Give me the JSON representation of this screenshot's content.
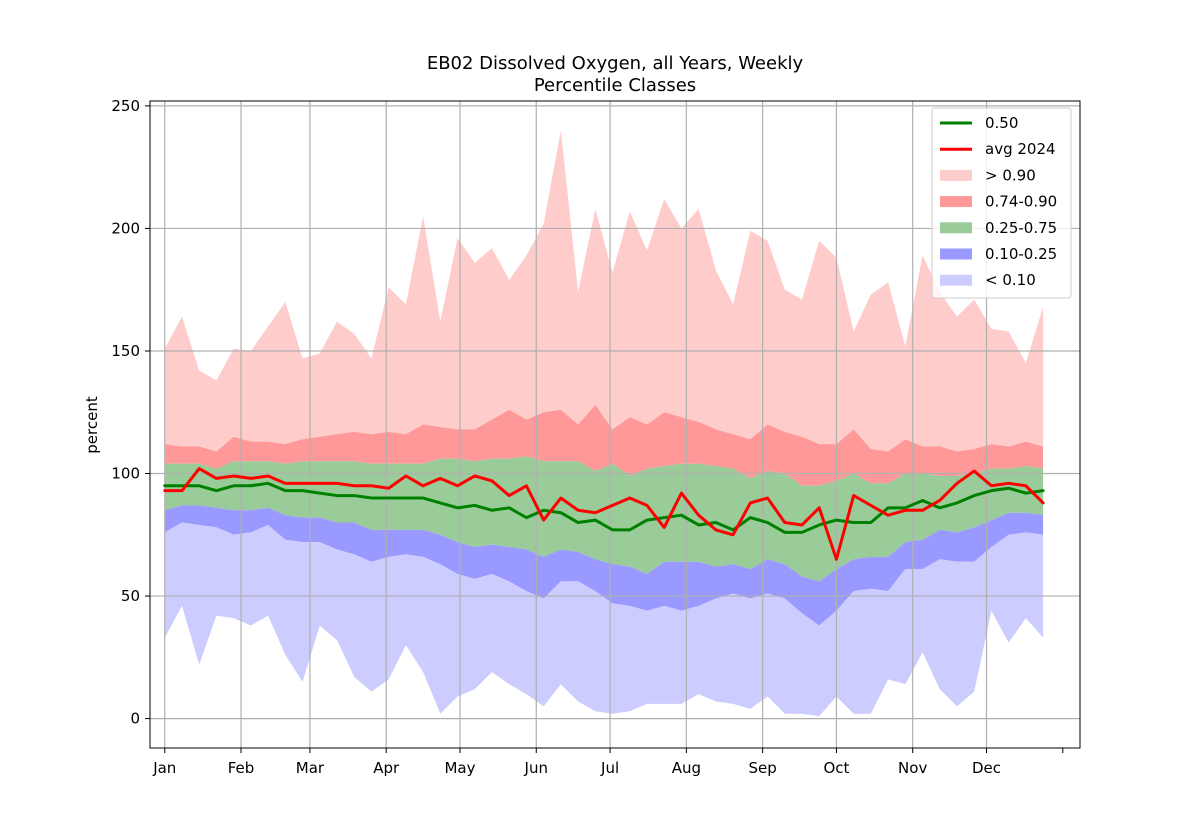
{
  "chart_data": {
    "type": "area",
    "title": "EB02 Dissolved Oxygen, all Years, Weekly",
    "subtitle": "Percentile Classes",
    "xlabel": "",
    "ylabel": "percent",
    "ylim": [
      -12,
      252
    ],
    "xlim": [
      -6,
      372
    ],
    "yticks": [
      0,
      50,
      100,
      150,
      200,
      250
    ],
    "xticks": [
      {
        "day": 0,
        "label": "Jan"
      },
      {
        "day": 31,
        "label": "Feb"
      },
      {
        "day": 59,
        "label": "Mar"
      },
      {
        "day": 90,
        "label": "Apr"
      },
      {
        "day": 120,
        "label": "May"
      },
      {
        "day": 151,
        "label": "Jun"
      },
      {
        "day": 181,
        "label": "Jul"
      },
      {
        "day": 212,
        "label": "Aug"
      },
      {
        "day": 243,
        "label": "Sep"
      },
      {
        "day": 273,
        "label": "Oct"
      },
      {
        "day": 304,
        "label": "Nov"
      },
      {
        "day": 334,
        "label": "Dec"
      },
      {
        "day": 365,
        "label": ""
      }
    ],
    "grid": true,
    "legend_position": "top-right",
    "x": [
      0,
      7,
      14,
      21,
      28,
      35,
      42,
      49,
      56,
      63,
      70,
      77,
      84,
      91,
      98,
      105,
      112,
      119,
      126,
      133,
      140,
      147,
      154,
      161,
      168,
      175,
      182,
      189,
      196,
      203,
      210,
      217,
      224,
      231,
      238,
      245,
      252,
      259,
      266,
      273,
      280,
      287,
      294,
      301,
      308,
      315,
      322,
      329,
      336,
      343,
      350,
      357
    ],
    "bands": {
      "min": [
        33,
        46,
        22,
        42,
        41,
        38,
        42,
        26,
        15,
        38,
        32,
        17,
        11,
        16,
        30,
        19,
        2,
        9,
        12,
        19,
        14,
        10,
        5,
        14,
        7,
        3,
        2,
        3,
        6,
        6,
        6,
        10,
        7,
        6,
        4,
        9,
        2,
        2,
        1,
        9,
        2,
        2,
        16,
        14,
        27,
        12,
        5,
        11,
        44,
        31,
        41,
        33
      ],
      "p10": [
        76,
        80,
        79,
        78,
        75,
        76,
        79,
        73,
        72,
        72,
        69,
        67,
        64,
        66,
        67,
        66,
        63,
        59,
        57,
        59,
        56,
        52,
        49,
        56,
        56,
        52,
        47,
        46,
        44,
        46,
        44,
        46,
        49,
        51,
        49,
        51,
        49,
        43,
        38,
        44,
        52,
        53,
        52,
        61,
        61,
        65,
        64,
        64,
        70,
        75,
        76,
        75
      ],
      "p25": [
        85,
        87,
        87,
        86,
        85,
        85,
        86,
        83,
        82,
        82,
        80,
        80,
        77,
        77,
        77,
        77,
        75,
        72,
        70,
        71,
        70,
        69,
        66,
        69,
        68,
        65,
        63,
        62,
        59,
        64,
        64,
        64,
        62,
        63,
        61,
        65,
        63,
        58,
        56,
        61,
        65,
        66,
        66,
        72,
        73,
        77,
        76,
        78,
        81,
        84,
        84,
        83
      ],
      "p75": [
        104,
        104,
        104,
        102,
        105,
        105,
        105,
        104,
        105,
        105,
        105,
        105,
        104,
        104,
        104,
        104,
        106,
        106,
        105,
        106,
        106,
        107,
        105,
        105,
        105,
        101,
        104,
        99,
        102,
        103,
        104,
        104,
        103,
        102,
        98,
        101,
        100,
        95,
        95,
        97,
        100,
        96,
        96,
        100,
        100,
        99,
        99,
        100,
        102,
        102,
        103,
        102
      ],
      "p90": [
        112,
        111,
        111,
        109,
        115,
        113,
        113,
        112,
        114,
        115,
        116,
        117,
        116,
        117,
        116,
        120,
        119,
        118,
        118,
        122,
        126,
        122,
        125,
        126,
        120,
        128,
        118,
        123,
        120,
        125,
        123,
        121,
        118,
        116,
        114,
        120,
        117,
        115,
        112,
        112,
        118,
        110,
        109,
        114,
        111,
        111,
        109,
        110,
        112,
        111,
        113,
        111
      ],
      "max": [
        151,
        164,
        142,
        138,
        151,
        150,
        160,
        170,
        147,
        149,
        162,
        157,
        147,
        176,
        169,
        205,
        162,
        196,
        186,
        192,
        179,
        189,
        202,
        240,
        174,
        208,
        182,
        207,
        191,
        212,
        200,
        208,
        183,
        169,
        199,
        195,
        175,
        171,
        195,
        188,
        158,
        173,
        178,
        152,
        189,
        174,
        164,
        171,
        159,
        158,
        145,
        168
      ]
    },
    "series": [
      {
        "name": "0.50",
        "color": "#008000",
        "values": [
          95,
          95,
          95,
          93,
          95,
          95,
          96,
          93,
          93,
          92,
          91,
          91,
          90,
          90,
          90,
          90,
          88,
          86,
          87,
          85,
          86,
          82,
          85,
          84,
          80,
          81,
          77,
          77,
          81,
          82,
          83,
          79,
          80,
          77,
          82,
          80,
          76,
          76,
          79,
          81,
          80,
          80,
          86,
          86,
          89,
          86,
          88,
          91,
          93,
          94,
          92,
          93
        ]
      },
      {
        "name": "avg 2024",
        "color": "#ff0000",
        "values": [
          93,
          93,
          102,
          98,
          99,
          98,
          99,
          96,
          96,
          96,
          96,
          95,
          95,
          94,
          99,
          95,
          98,
          95,
          99,
          97,
          91,
          95,
          81,
          90,
          85,
          84,
          87,
          90,
          87,
          78,
          92,
          83,
          77,
          75,
          88,
          90,
          80,
          79,
          86,
          65,
          91,
          87,
          83,
          85,
          85,
          89,
          96,
          101,
          95,
          96,
          95,
          88
        ]
      }
    ],
    "legend": [
      {
        "label": "0.50",
        "kind": "line",
        "color": "#008000"
      },
      {
        "label": "avg 2024",
        "kind": "line",
        "color": "#ff0000"
      },
      {
        "label": "> 0.90",
        "kind": "patch",
        "color": "#ffcccc"
      },
      {
        "label": "0.74-0.90",
        "kind": "patch",
        "color": "#ff9999"
      },
      {
        "label": "0.25-0.75",
        "kind": "patch",
        "color": "#99cc99"
      },
      {
        "label": "0.10-0.25",
        "kind": "patch",
        "color": "#9999ff"
      },
      {
        "label": "< 0.10",
        "kind": "patch",
        "color": "#ccccff"
      }
    ]
  }
}
